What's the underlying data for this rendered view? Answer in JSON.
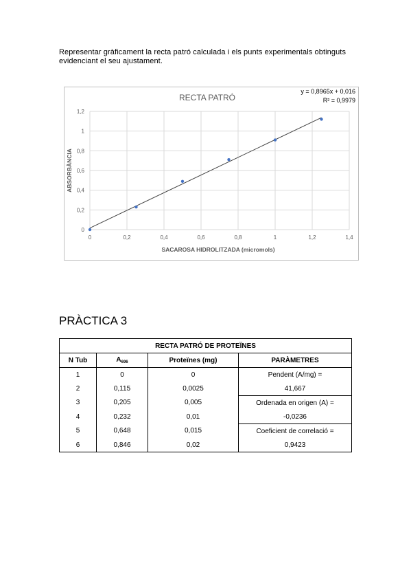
{
  "intro": {
    "line1": "Representar gràficament la recta patró calculada i els punts experimentals obtinguts",
    "line2": "evidenciant el seu ajustament."
  },
  "chart_data": {
    "type": "scatter",
    "title": "RECTA PATRÓ",
    "xlabel": "SACAROSA HIDROLITZADA (micromols)",
    "ylabel": "ABSORBÀNCIA",
    "equation": "y = 0,8965x + 0,016",
    "r2": "R² = 0,9979",
    "xlim": [
      0,
      1.4
    ],
    "ylim": [
      0,
      1.2
    ],
    "xticks": [
      "0",
      "0,2",
      "0,4",
      "0,6",
      "0,8",
      "1",
      "1,2",
      "1,4"
    ],
    "yticks": [
      "0",
      "0,2",
      "0,4",
      "0,6",
      "0,8",
      "1",
      "1,2"
    ],
    "grid": true,
    "series": [
      {
        "x": [
          0,
          0.25,
          0.5,
          0.75,
          1.0,
          1.25
        ],
        "y": [
          0.0,
          0.23,
          0.49,
          0.71,
          0.91,
          1.12
        ]
      }
    ],
    "trendline": {
      "slope": 0.8965,
      "intercept": 0.016
    },
    "colors": {
      "points": "#4472c4",
      "line": "#404040",
      "grid": "#d9d9d9",
      "text": "#595959"
    }
  },
  "section": {
    "title": "PRÀCTICA 3"
  },
  "table": {
    "title": "RECTA PATRÓ DE PROTEÏNES",
    "headers": {
      "tub": "N Tub",
      "abs": "A",
      "abs_sub": "696",
      "prot": "Proteïnes (mg)",
      "params": "PARÀMETRES"
    },
    "rows": [
      {
        "tub": "1",
        "abs": "0",
        "prot": "0"
      },
      {
        "tub": "2",
        "abs": "0,115",
        "prot": "0,0025"
      },
      {
        "tub": "3",
        "abs": "0,205",
        "prot": "0,005"
      },
      {
        "tub": "4",
        "abs": "0,232",
        "prot": "0,01"
      },
      {
        "tub": "5",
        "abs": "0,648",
        "prot": "0,015"
      },
      {
        "tub": "6",
        "abs": "0,846",
        "prot": "0,02"
      }
    ],
    "params": [
      {
        "label": "Pendent (A/mg) =",
        "value": "41,667"
      },
      {
        "label": "Ordenada en origen (A) =",
        "value": "-0,0236"
      },
      {
        "label": "Coeficient de correlació =",
        "value": "0,9423"
      }
    ]
  }
}
